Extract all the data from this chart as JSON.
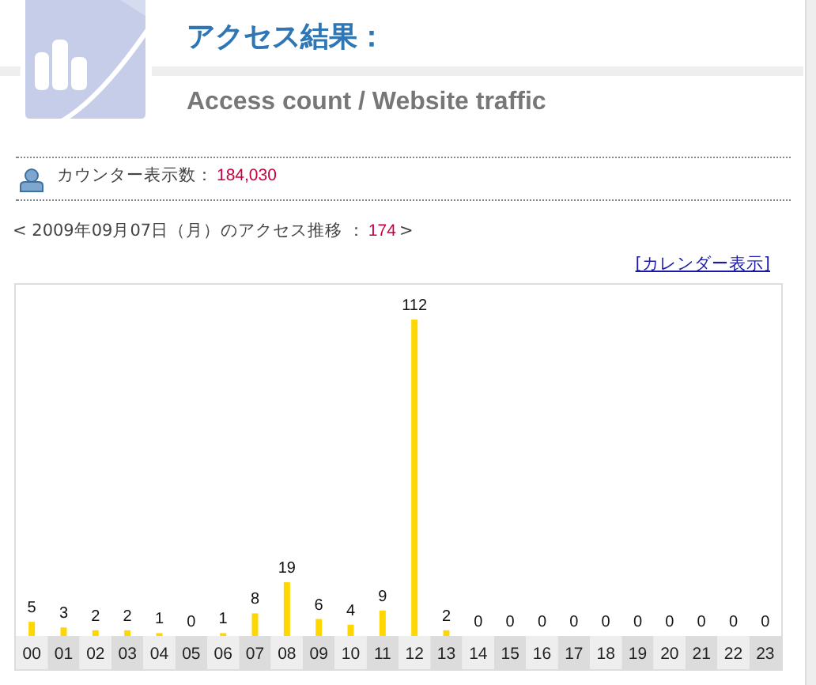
{
  "chart_data": {
    "type": "bar",
    "title": "アクセス結果：",
    "subtitle": "Access count / Website traffic",
    "categories": [
      "00",
      "01",
      "02",
      "03",
      "04",
      "05",
      "06",
      "07",
      "08",
      "09",
      "10",
      "11",
      "12",
      "13",
      "14",
      "15",
      "16",
      "17",
      "18",
      "19",
      "20",
      "21",
      "22",
      "23"
    ],
    "values": [
      5,
      3,
      2,
      2,
      1,
      0,
      1,
      8,
      19,
      6,
      4,
      9,
      112,
      2,
      0,
      0,
      0,
      0,
      0,
      0,
      0,
      0,
      0,
      0
    ],
    "color": "#ffd700",
    "data_labels": true,
    "annotations": [
      "カウンター表示数：",
      "184,030",
      "< 2009年09月07日（月）のアクセス推移 ：",
      "174",
      ">",
      "[カレンダー表示]"
    ]
  }
}
